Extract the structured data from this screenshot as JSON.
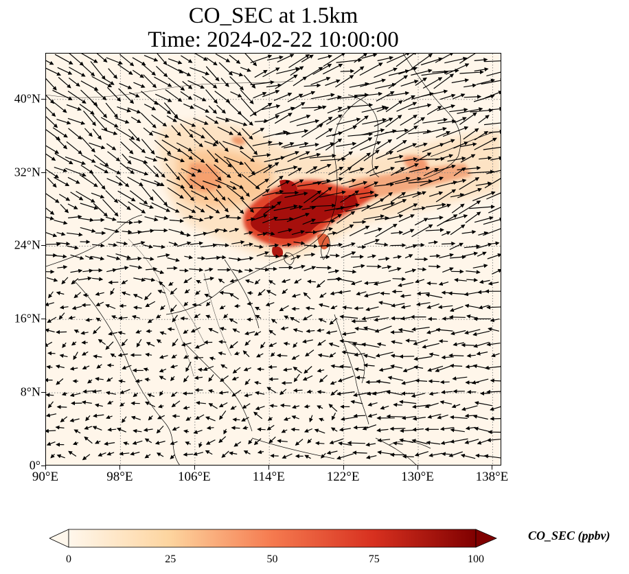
{
  "title": {
    "line1": "CO_SEC at 1.5km",
    "line2": "Time: 2024-02-22 10:00:00"
  },
  "map": {
    "lon_range": [
      90,
      139
    ],
    "lat_range": [
      0,
      45
    ],
    "lon_ticks": [
      "90°E",
      "98°E",
      "106°E",
      "114°E",
      "122°E",
      "130°E",
      "138°E"
    ],
    "lat_ticks": [
      "0°",
      "8°N",
      "16°N",
      "24°N",
      "32°N",
      "40°N"
    ],
    "gridlines": "dotted",
    "wind_vectors": "quiver",
    "colormap": "OrRd",
    "colors": {
      "background": "#fff6ea",
      "low": "#fdd9ad",
      "mid": "#f08a5c",
      "high": "#8b0000"
    }
  },
  "colorbar": {
    "label": "CO_SEC (ppbv)",
    "ticks": [
      "0",
      "25",
      "50",
      "75",
      "100"
    ],
    "range": [
      0,
      100
    ],
    "extend": "both"
  }
}
